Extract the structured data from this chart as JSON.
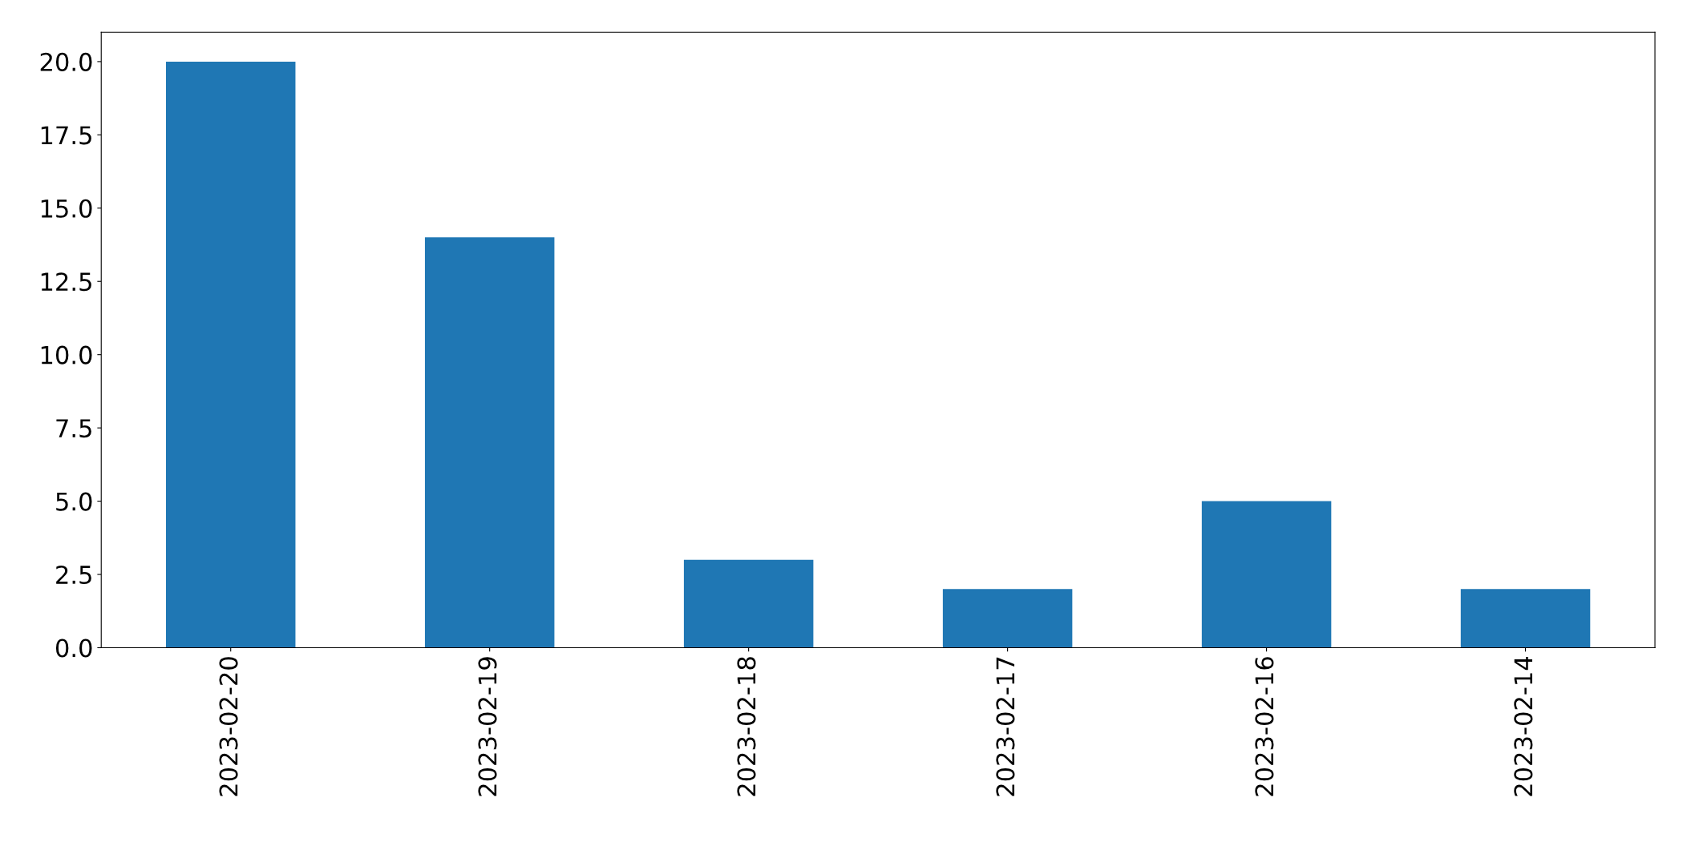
{
  "chart_data": {
    "type": "bar",
    "categories": [
      "2023-02-20",
      "2023-02-19",
      "2023-02-18",
      "2023-02-17",
      "2023-02-16",
      "2023-02-14"
    ],
    "values": [
      20,
      14,
      3,
      2,
      5,
      2
    ],
    "color": "#1f77b4",
    "ylim": [
      0,
      21
    ],
    "yticks": [
      {
        "value": 0,
        "label": "0.0"
      },
      {
        "value": 2.5,
        "label": "2.5"
      },
      {
        "value": 5,
        "label": "5.0"
      },
      {
        "value": 7.5,
        "label": "7.5"
      },
      {
        "value": 10,
        "label": "10.0"
      },
      {
        "value": 12.5,
        "label": "12.5"
      },
      {
        "value": 15,
        "label": "15.0"
      },
      {
        "value": 17.5,
        "label": "17.5"
      },
      {
        "value": 20,
        "label": "20.0"
      }
    ],
    "grid": false,
    "legend": false
  }
}
